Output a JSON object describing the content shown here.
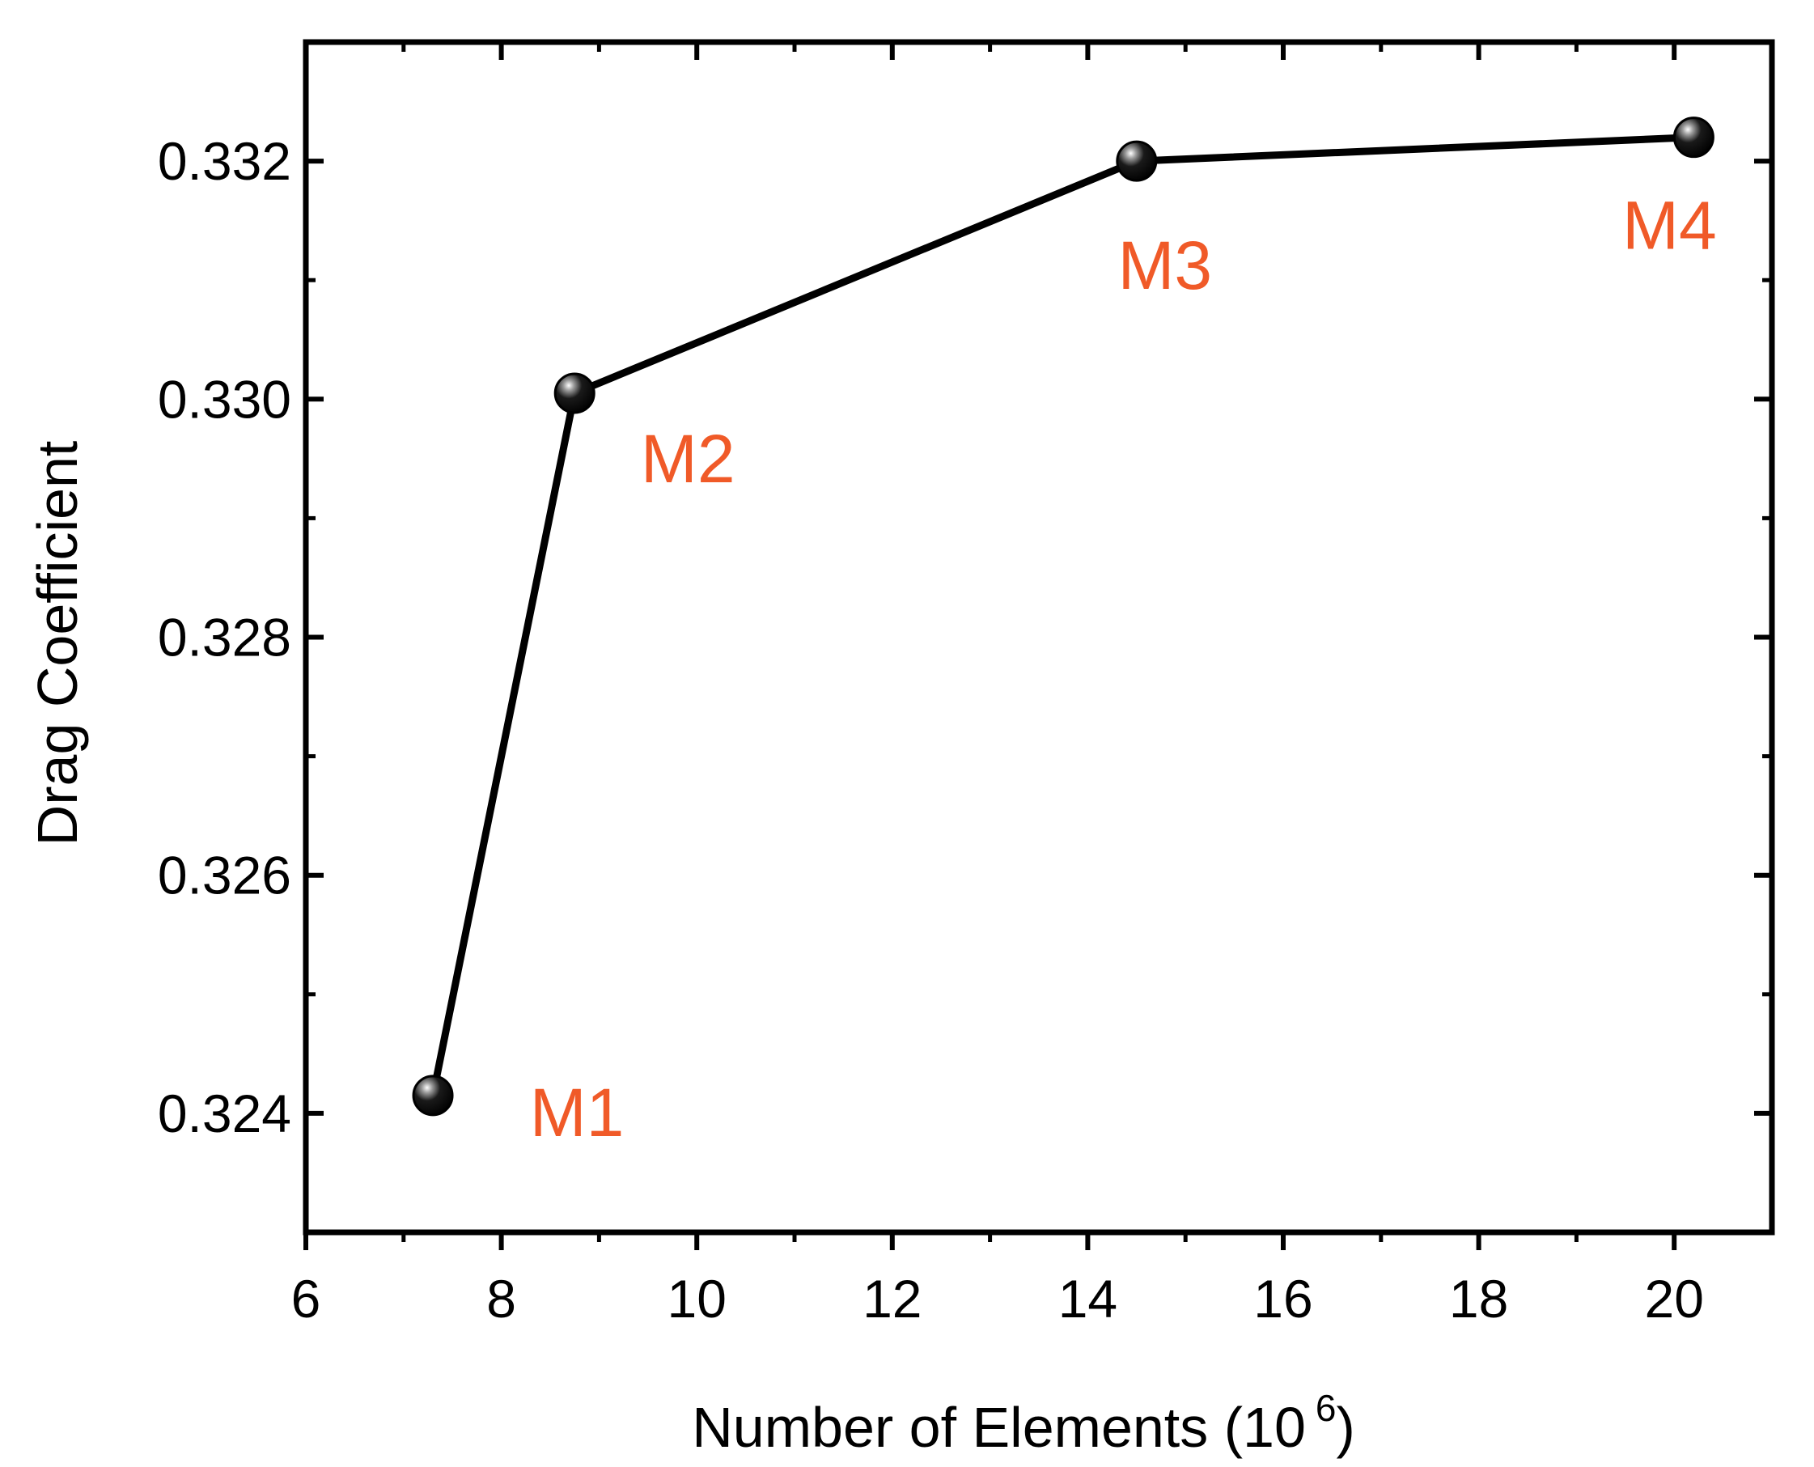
{
  "chart_data": {
    "type": "line",
    "xlabel": "Number of Elements (10",
    "xlabel_sup": "6",
    "xlabel_close": ")",
    "ylabel": "Drag  Coefficient",
    "xlim": [
      6,
      21
    ],
    "ylim": [
      0.323,
      0.333
    ],
    "x_ticks": [
      "6",
      "8",
      "10",
      "12",
      "14",
      "16",
      "18",
      "20"
    ],
    "y_ticks": [
      "0.324",
      "0.326",
      "0.328",
      "0.330",
      "0.332"
    ],
    "grid": false,
    "legend": "none",
    "series": [
      {
        "x": [
          7.3,
          8.75,
          14.5,
          20.2
        ],
        "y": [
          0.32415,
          0.33005,
          0.332,
          0.3322
        ],
        "labels": [
          "M1",
          "M2",
          "M3",
          "M4"
        ]
      }
    ],
    "colors": {
      "line": "#000000",
      "marker": "#111111",
      "label": "#f05a28"
    }
  }
}
